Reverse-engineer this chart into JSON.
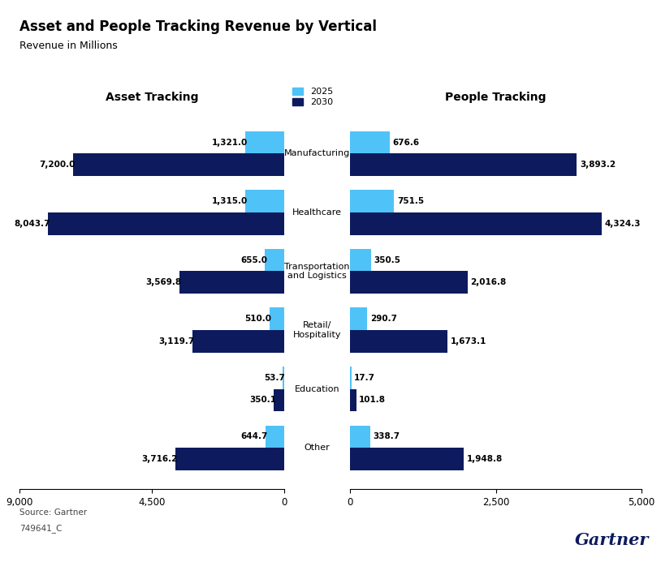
{
  "title": "Asset and People Tracking Revenue by Vertical",
  "subtitle": "Revenue in Millions",
  "categories": [
    "Other",
    "Education",
    "Retail/\nHospitality",
    "Transportation\nand Logistics",
    "Healthcare",
    "Manufacturing"
  ],
  "categories_center": [
    "Other",
    "Education",
    "Retail/\nHospitality",
    "Transportation\nand Logistics",
    "Healthcare",
    "Manufacturing"
  ],
  "asset_2025": [
    644.7,
    53.7,
    510.0,
    655.0,
    1315.0,
    1321.0
  ],
  "asset_2030": [
    3716.2,
    350.1,
    3119.7,
    3569.8,
    8043.7,
    7200.0
  ],
  "people_2025": [
    338.7,
    17.7,
    290.7,
    350.5,
    751.5,
    676.6
  ],
  "people_2030": [
    1948.8,
    101.8,
    1673.1,
    2016.8,
    4324.3,
    3893.2
  ],
  "asset_2025_labels": [
    "644.7",
    "53.7",
    "510.0",
    "655.0",
    "1,315.0",
    "1,321.0"
  ],
  "asset_2030_labels": [
    "3,716.2",
    "350.1",
    "3,119.7",
    "3,569.8",
    "8,043.7",
    "7,200.0"
  ],
  "people_2025_labels": [
    "338.7",
    "17.7",
    "290.7",
    "350.5",
    "751.5",
    "676.6"
  ],
  "people_2030_labels": [
    "1,948.8",
    "101.8",
    "1,673.1",
    "2,016.8",
    "4,324.3",
    "3,893.2"
  ],
  "color_2025": "#4FC3F7",
  "color_2030": "#0D1B5E",
  "header_bg": "#E8E8E8",
  "left_header": "Asset Tracking",
  "right_header": "People Tracking",
  "legend_2025": "2025",
  "legend_2030": "2030",
  "source": "Source: Gartner",
  "code": "749641_C",
  "gartner_text": "Gartner",
  "left_xlim": [
    9000,
    0
  ],
  "right_xlim": [
    0,
    5000
  ],
  "left_xticks": [
    9000,
    4500,
    0
  ],
  "right_xticks": [
    0,
    2500,
    5000
  ]
}
